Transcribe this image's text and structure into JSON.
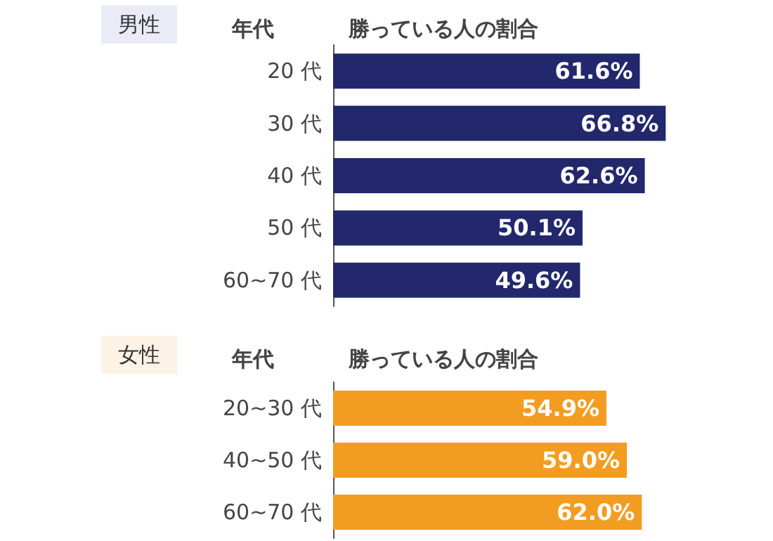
{
  "chart_data": [
    {
      "type": "bar",
      "orientation": "horizontal",
      "title": "男性",
      "ylabel": "年代",
      "xlabel": "勝っている人の割合",
      "categories": [
        "20 代",
        "30 代",
        "40 代",
        "50 代",
        "60~70 代"
      ],
      "values": [
        61.6,
        66.8,
        62.6,
        50.1,
        49.6
      ],
      "color": "#22286b",
      "value_labels": [
        "61.6%",
        "66.8%",
        "62.6%",
        "50.1%",
        "49.6%"
      ]
    },
    {
      "type": "bar",
      "orientation": "horizontal",
      "title": "女性",
      "ylabel": "年代",
      "xlabel": "勝っている人の割合",
      "categories": [
        "20~30 代",
        "40~50 代",
        "60~70 代"
      ],
      "values": [
        54.9,
        59.0,
        62.0
      ],
      "color": "#f39c22",
      "value_labels": [
        "54.9%",
        "59.0%",
        "62.0%"
      ]
    }
  ]
}
